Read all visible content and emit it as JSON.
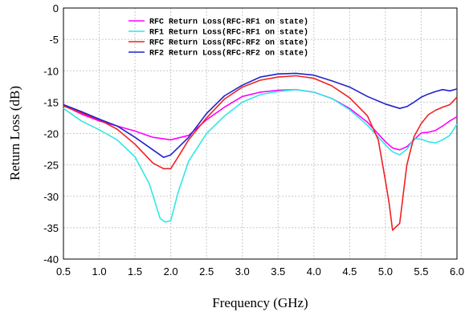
{
  "chart_data": {
    "type": "line",
    "title": "",
    "xlabel": "Frequency (GHz)",
    "ylabel": "Return Loss (dB)",
    "xlim": [
      0.5,
      6.0
    ],
    "ylim": [
      -40,
      0
    ],
    "xticks": [
      0.5,
      1.0,
      1.5,
      2.0,
      2.5,
      3.0,
      3.5,
      4.0,
      4.5,
      5.0,
      5.5,
      6.0
    ],
    "yticks": [
      0,
      -5,
      -10,
      -15,
      -20,
      -25,
      -30,
      -35,
      -40
    ],
    "grid": true,
    "legend_position": "top-center",
    "series": [
      {
        "name": "RFC Return Loss(RFC-RF1 on state)",
        "color": "#ff00ff",
        "x": [
          0.5,
          0.75,
          1.0,
          1.25,
          1.5,
          1.75,
          2.0,
          2.25,
          2.5,
          2.75,
          3.0,
          3.25,
          3.5,
          3.75,
          4.0,
          4.25,
          4.5,
          4.75,
          5.0,
          5.1,
          5.2,
          5.3,
          5.4,
          5.5,
          5.6,
          5.7,
          5.8,
          5.9,
          6.0
        ],
        "y": [
          -15.5,
          -16.9,
          -18.0,
          -18.8,
          -19.6,
          -20.6,
          -21.0,
          -20.3,
          -17.8,
          -15.8,
          -14.1,
          -13.4,
          -13.1,
          -13.0,
          -13.4,
          -14.4,
          -16.0,
          -18.2,
          -21.3,
          -22.3,
          -22.6,
          -22.1,
          -21.0,
          -19.9,
          -19.8,
          -19.5,
          -18.8,
          -18.0,
          -17.3
        ]
      },
      {
        "name": "RF1 Return Loss(RFC-RF1 on state)",
        "color": "#33e6e6",
        "x": [
          0.5,
          0.75,
          1.0,
          1.25,
          1.5,
          1.7,
          1.85,
          1.92,
          2.0,
          2.1,
          2.25,
          2.5,
          2.75,
          3.0,
          3.25,
          3.5,
          3.75,
          4.0,
          4.25,
          4.5,
          4.75,
          5.0,
          5.1,
          5.2,
          5.3,
          5.4,
          5.5,
          5.6,
          5.7,
          5.8,
          5.9,
          6.0
        ],
        "y": [
          -16.0,
          -18.0,
          -19.4,
          -21.0,
          -23.7,
          -28.0,
          -33.5,
          -34.1,
          -33.9,
          -29.5,
          -24.4,
          -20.0,
          -17.2,
          -15.0,
          -13.8,
          -13.3,
          -13.0,
          -13.4,
          -14.4,
          -16.2,
          -18.7,
          -21.8,
          -22.9,
          -23.4,
          -22.5,
          -20.8,
          -20.9,
          -21.3,
          -21.5,
          -21.0,
          -20.3,
          -18.5
        ]
      },
      {
        "name": "RFC Return Loss(RFC-RF2 on state)",
        "color": "#ee2222",
        "x": [
          0.5,
          0.75,
          1.0,
          1.25,
          1.5,
          1.75,
          1.9,
          2.0,
          2.1,
          2.25,
          2.5,
          2.75,
          3.0,
          3.25,
          3.5,
          3.75,
          4.0,
          4.25,
          4.5,
          4.75,
          4.9,
          5.0,
          5.05,
          5.1,
          5.2,
          5.3,
          5.4,
          5.5,
          5.6,
          5.7,
          5.8,
          5.9,
          6.0
        ],
        "y": [
          -15.6,
          -16.7,
          -17.8,
          -19.3,
          -21.7,
          -24.7,
          -25.6,
          -25.6,
          -23.8,
          -21.0,
          -17.5,
          -14.5,
          -12.6,
          -11.5,
          -11.0,
          -10.8,
          -11.2,
          -12.4,
          -14.3,
          -17.2,
          -21.0,
          -27.5,
          -31.0,
          -35.4,
          -34.3,
          -25.0,
          -20.5,
          -18.4,
          -17.0,
          -16.3,
          -15.8,
          -15.4,
          -14.2
        ]
      },
      {
        "name": "RF2 Return Loss(RFC-RF2 on state)",
        "color": "#2222cc",
        "x": [
          0.5,
          0.75,
          1.0,
          1.25,
          1.5,
          1.75,
          1.9,
          2.0,
          2.25,
          2.5,
          2.75,
          3.0,
          3.25,
          3.5,
          3.75,
          4.0,
          4.25,
          4.5,
          4.75,
          5.0,
          5.2,
          5.3,
          5.4,
          5.5,
          5.6,
          5.7,
          5.8,
          5.9,
          6.0
        ],
        "y": [
          -15.4,
          -16.5,
          -17.7,
          -18.8,
          -20.6,
          -22.6,
          -23.8,
          -23.4,
          -20.6,
          -16.8,
          -14.0,
          -12.3,
          -11.0,
          -10.5,
          -10.4,
          -10.7,
          -11.6,
          -12.6,
          -14.1,
          -15.3,
          -16.0,
          -15.7,
          -15.0,
          -14.2,
          -13.7,
          -13.3,
          -13.0,
          -13.2,
          -12.9
        ]
      }
    ]
  }
}
